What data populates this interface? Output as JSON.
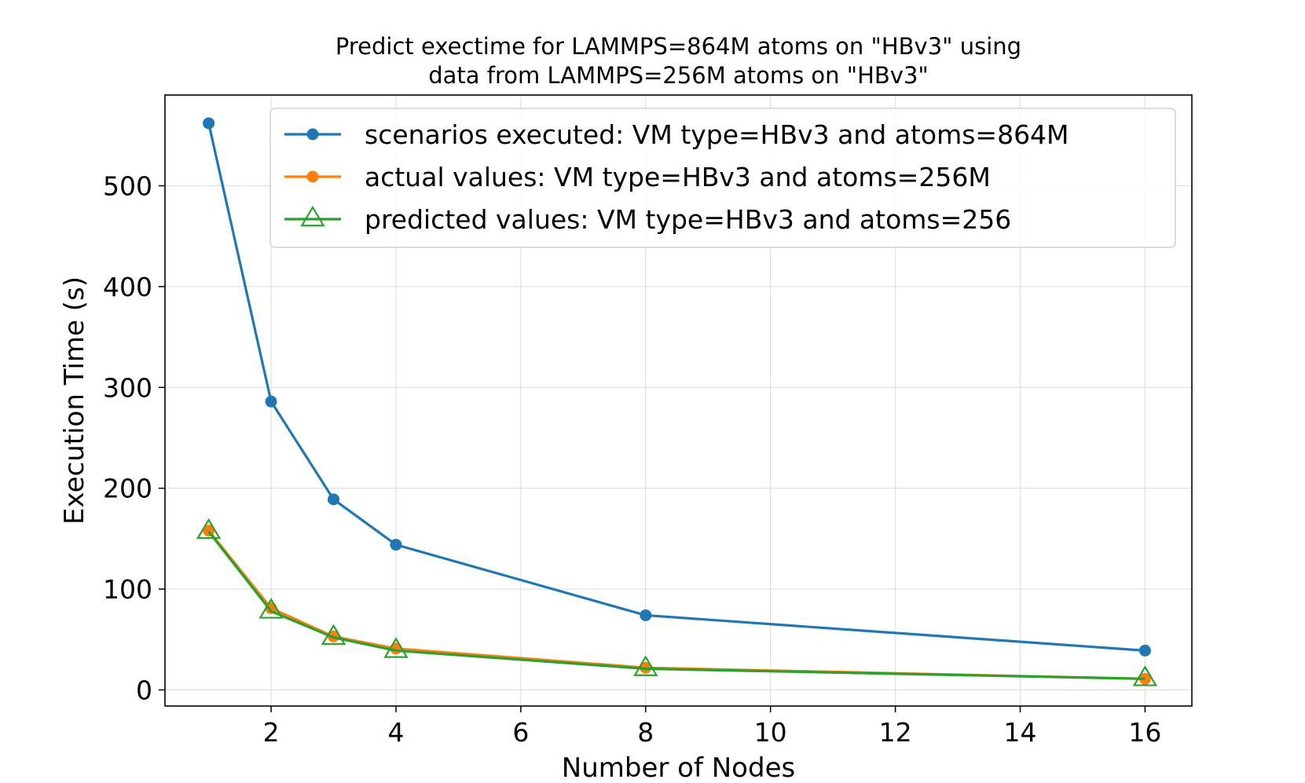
{
  "chart_data": {
    "type": "line",
    "title_lines": [
      "Predict exectime for LAMMPS=864M atoms on \"HBv3\" using",
      "data from LAMMPS=256M atoms on \"HBv3\""
    ],
    "xlabel": "Number of Nodes",
    "ylabel": "Execution Time (s)",
    "xlim": [
      0.3,
      16.75
    ],
    "ylim": [
      -16,
      590
    ],
    "xticks": [
      2,
      4,
      6,
      8,
      10,
      12,
      14,
      16
    ],
    "yticks": [
      0,
      100,
      200,
      300,
      400,
      500
    ],
    "grid": true,
    "legend_position": "top-right",
    "x": [
      1,
      2,
      3,
      4,
      8,
      16
    ],
    "series": [
      {
        "name": "scenarios executed: VM type=HBv3 and atoms=864M",
        "color": "#1f77b4",
        "marker": "circle",
        "values": [
          562,
          286,
          189,
          144,
          74,
          39
        ]
      },
      {
        "name": "actual values: VM type=HBv3 and atoms=256M",
        "color": "#ff7f0e",
        "marker": "circle",
        "values": [
          158,
          81,
          53,
          41,
          22,
          11
        ]
      },
      {
        "name": "predicted values: VM type=HBv3 and atoms=256",
        "color": "#2ca02c",
        "marker": "triangle-open",
        "values": [
          157,
          78,
          52,
          39,
          21,
          11
        ]
      }
    ]
  }
}
